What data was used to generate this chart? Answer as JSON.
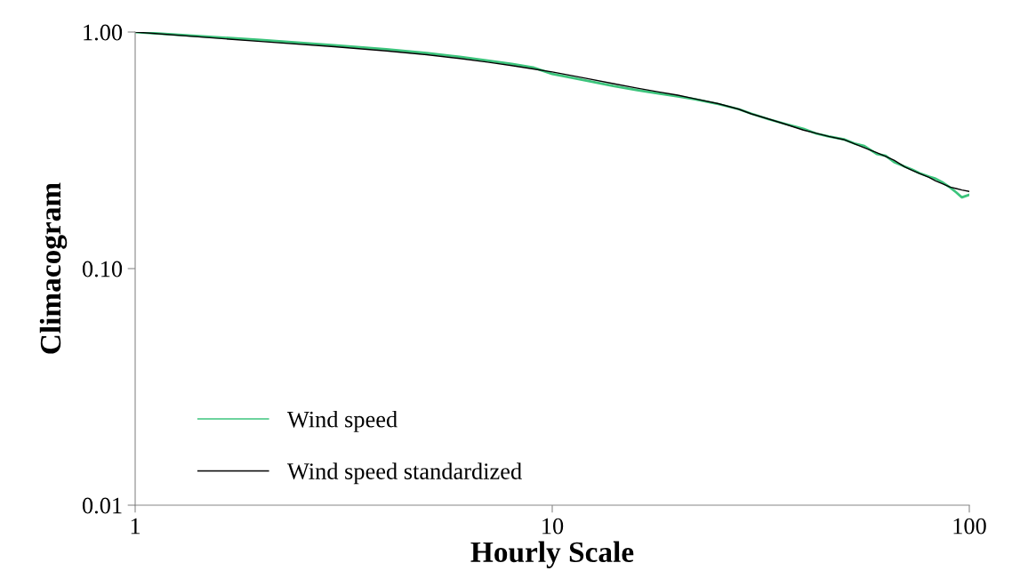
{
  "chart_data": {
    "type": "line",
    "xlabel": "Hourly Scale",
    "ylabel": "Climacogram",
    "log": "xy",
    "grid": false,
    "legend": "bottom left",
    "marker": "none",
    "line_style": "solid",
    "xlim": [
      1,
      100
    ],
    "ylim": [
      0.01,
      1
    ],
    "xticks": [
      1,
      10,
      100
    ],
    "yticks": [
      {
        "value": 0.01,
        "label": "0.01"
      },
      {
        "value": 0.1,
        "label": "0.10"
      },
      {
        "value": 1,
        "label": "1.00"
      }
    ],
    "x": [
      1,
      2,
      3,
      4,
      5,
      6,
      7,
      8,
      9,
      10,
      12,
      14,
      16,
      18,
      20,
      22,
      25,
      28,
      30,
      33,
      36,
      40,
      43,
      46,
      50,
      53,
      56,
      60,
      63,
      66,
      70,
      73,
      76,
      80,
      83,
      86,
      90,
      93,
      96,
      100
    ],
    "series": [
      {
        "name": "Wind speed",
        "color": "#3cc47c",
        "values": [
          1,
          0.925,
          0.88,
          0.845,
          0.815,
          0.785,
          0.758,
          0.733,
          0.708,
          0.665,
          0.625,
          0.592,
          0.568,
          0.55,
          0.535,
          0.52,
          0.496,
          0.472,
          0.452,
          0.428,
          0.41,
          0.39,
          0.372,
          0.362,
          0.352,
          0.338,
          0.33,
          0.305,
          0.3,
          0.282,
          0.27,
          0.262,
          0.253,
          0.245,
          0.24,
          0.232,
          0.22,
          0.21,
          0.2,
          0.205
        ]
      },
      {
        "name": "Wind speed standardized",
        "color": "#000000",
        "values": [
          1,
          0.912,
          0.867,
          0.832,
          0.802,
          0.773,
          0.746,
          0.721,
          0.698,
          0.678,
          0.638,
          0.605,
          0.579,
          0.558,
          0.541,
          0.522,
          0.498,
          0.472,
          0.451,
          0.429,
          0.409,
          0.385,
          0.373,
          0.362,
          0.351,
          0.337,
          0.324,
          0.309,
          0.298,
          0.287,
          0.269,
          0.26,
          0.252,
          0.243,
          0.235,
          0.229,
          0.221,
          0.218,
          0.215,
          0.212
        ]
      }
    ]
  }
}
